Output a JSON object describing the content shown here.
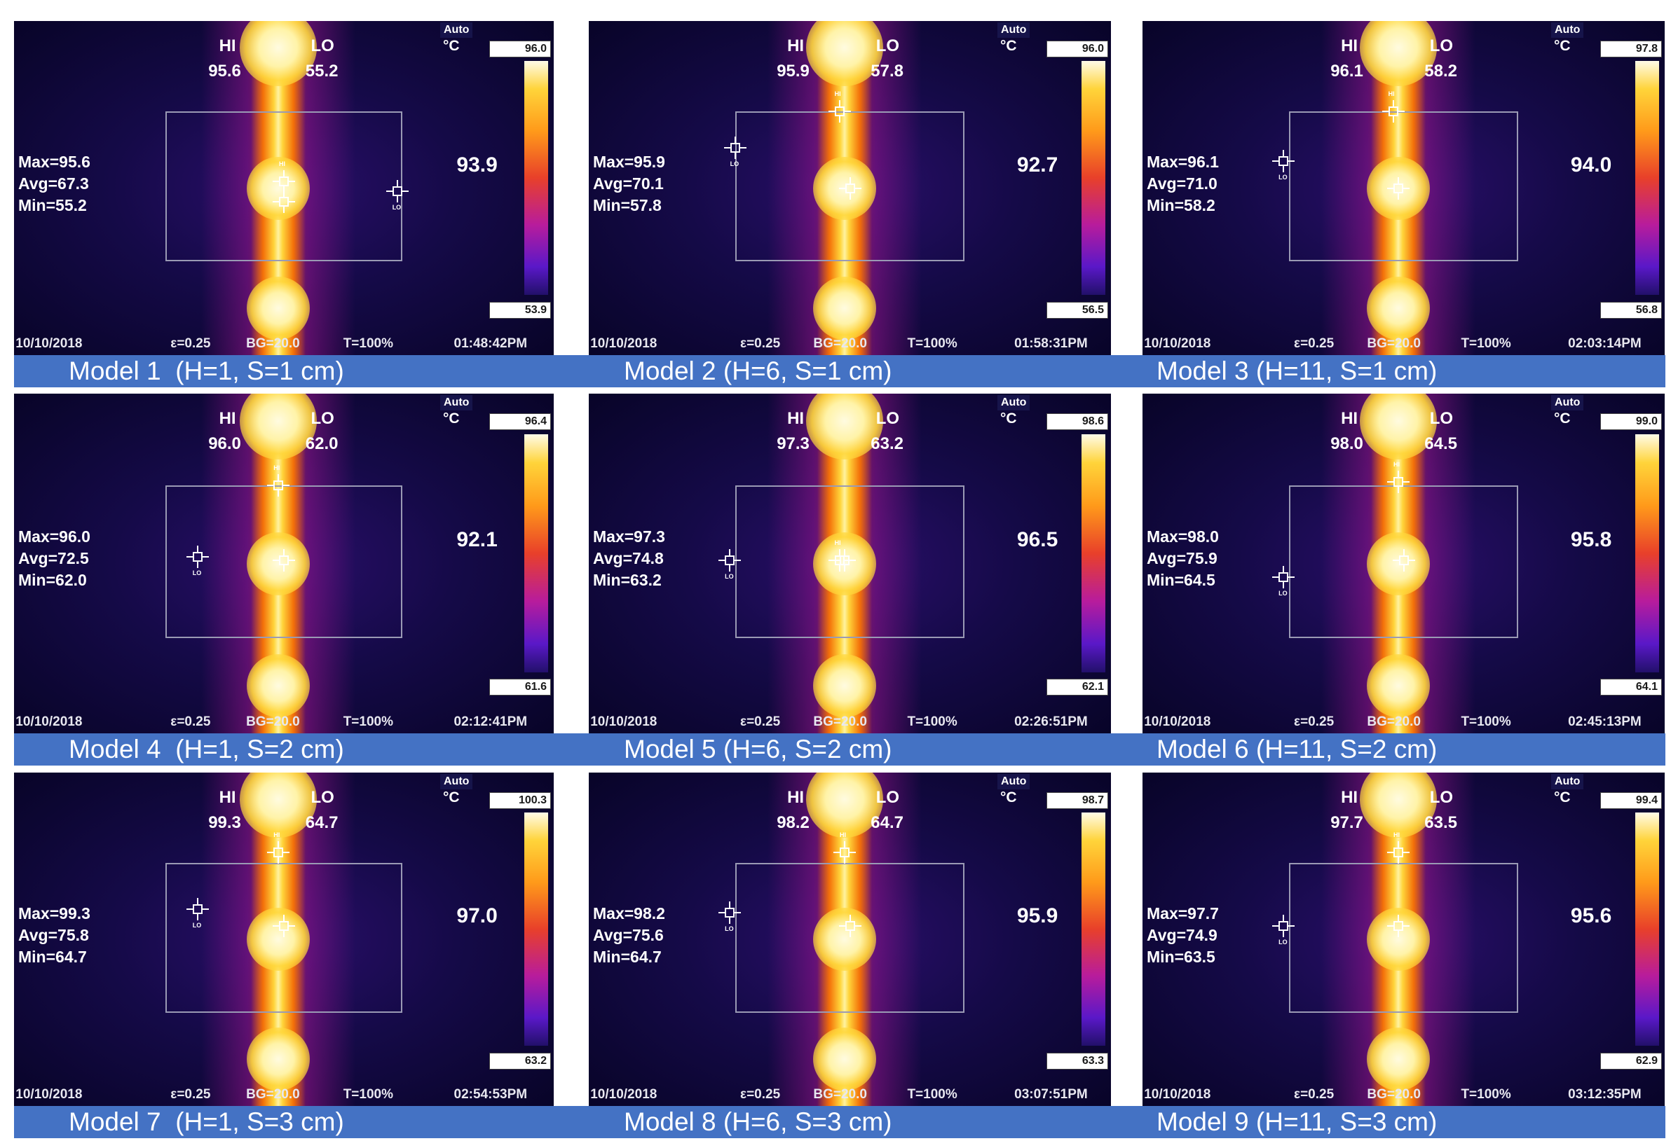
{
  "common": {
    "date": "10/10/2018",
    "emissivity": "ε=0.25",
    "background": "BG=20.0",
    "transmission": "T=100%",
    "hi_label": "HI",
    "lo_label": "LO",
    "auto_label": "Auto",
    "unit": "°C",
    "crosshair_hi_tag": "HI",
    "crosshair_lo_tag": "LO"
  },
  "colors": {
    "caption_bar": "#4472c4",
    "background": "#0b0633"
  },
  "models": [
    {
      "caption": "Model 1  (H=1, S=1 cm)",
      "hi": "95.6",
      "lo": "55.2",
      "max": "Max=95.6",
      "avg": "Avg=67.3",
      "min": "Min=55.2",
      "center": "93.9",
      "scale_top": "96.0",
      "scale_bottom": "53.9",
      "time": "01:48:42PM"
    },
    {
      "caption": "Model 2 (H=6, S=1 cm)",
      "hi": "95.9",
      "lo": "57.8",
      "max": "Max=95.9",
      "avg": "Avg=70.1",
      "min": "Min=57.8",
      "center": "92.7",
      "scale_top": "96.0",
      "scale_bottom": "56.5",
      "time": "01:58:31PM"
    },
    {
      "caption": "Model 3 (H=11, S=1 cm)",
      "hi": "96.1",
      "lo": "58.2",
      "max": "Max=96.1",
      "avg": "Avg=71.0",
      "min": "Min=58.2",
      "center": "94.0",
      "scale_top": "97.8",
      "scale_bottom": "56.8",
      "time": "02:03:14PM"
    },
    {
      "caption": "Model 4  (H=1, S=2 cm)",
      "hi": "96.0",
      "lo": "62.0",
      "max": "Max=96.0",
      "avg": "Avg=72.5",
      "min": "Min=62.0",
      "center": "92.1",
      "scale_top": "96.4",
      "scale_bottom": "61.6",
      "time": "02:12:41PM"
    },
    {
      "caption": "Model 5 (H=6, S=2 cm)",
      "hi": "97.3",
      "lo": "63.2",
      "max": "Max=97.3",
      "avg": "Avg=74.8",
      "min": "Min=63.2",
      "center": "96.5",
      "scale_top": "98.6",
      "scale_bottom": "62.1",
      "time": "02:26:51PM"
    },
    {
      "caption": "Model 6 (H=11, S=2 cm)",
      "hi": "98.0",
      "lo": "64.5",
      "max": "Max=98.0",
      "avg": "Avg=75.9",
      "min": "Min=64.5",
      "center": "95.8",
      "scale_top": "99.0",
      "scale_bottom": "64.1",
      "time": "02:45:13PM"
    },
    {
      "caption": "Model 7  (H=1, S=3 cm)",
      "hi": "99.3",
      "lo": "64.7",
      "max": "Max=99.3",
      "avg": "Avg=75.8",
      "min": "Min=64.7",
      "center": "97.0",
      "scale_top": "100.3",
      "scale_bottom": "63.2",
      "time": "02:54:53PM"
    },
    {
      "caption": "Model 8 (H=6, S=3 cm)",
      "hi": "98.2",
      "lo": "64.7",
      "max": "Max=98.2",
      "avg": "Avg=75.6",
      "min": "Min=64.7",
      "center": "95.9",
      "scale_top": "98.7",
      "scale_bottom": "63.3",
      "time": "03:07:51PM"
    },
    {
      "caption": "Model 9 (H=11, S=3 cm)",
      "hi": "97.7",
      "lo": "63.5",
      "max": "Max=97.7",
      "avg": "Avg=74.9",
      "min": "Min=63.5",
      "center": "95.6",
      "scale_top": "99.4",
      "scale_bottom": "62.9",
      "time": "03:12:35PM"
    }
  ]
}
